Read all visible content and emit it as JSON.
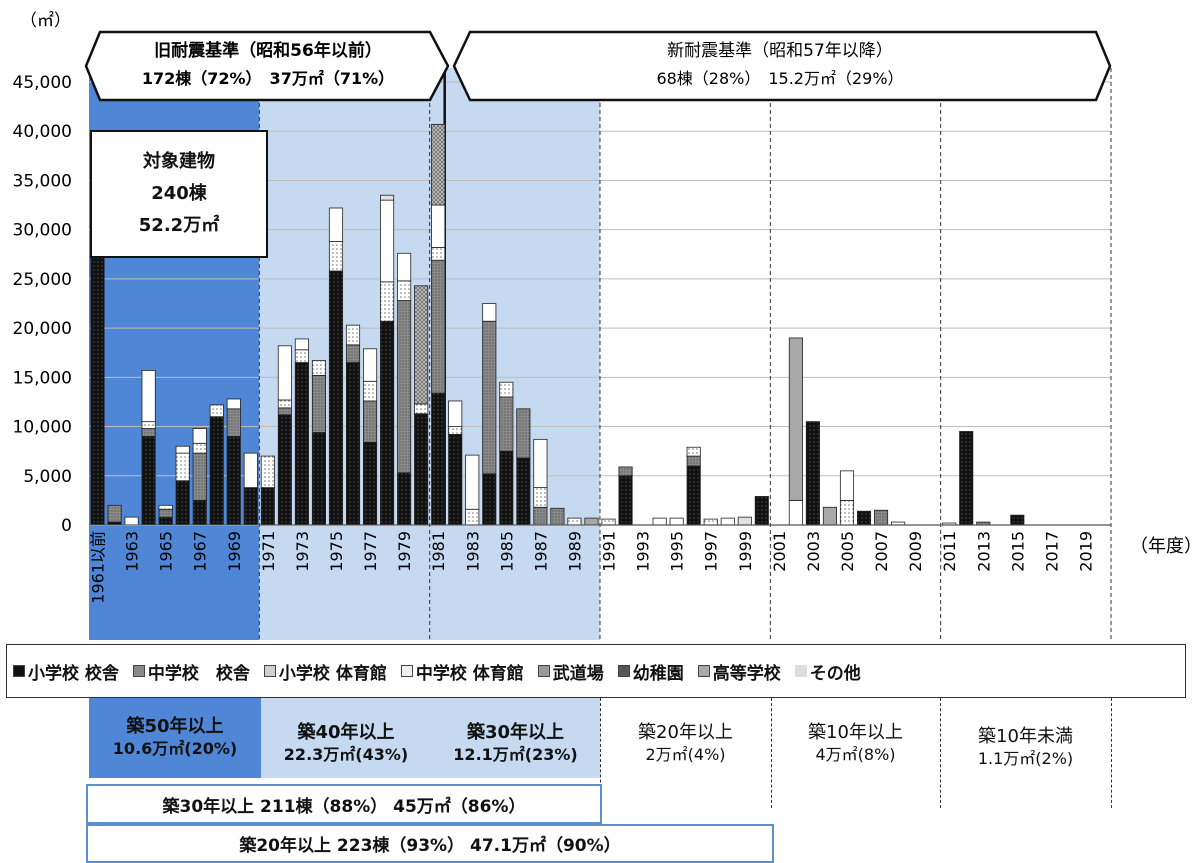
{
  "unit_label": "（㎡）",
  "x_unit_label": "（年度）",
  "banners": {
    "old": {
      "title": "旧耐震基準（昭和56年以前）",
      "sub": "172棟（72%）　37万㎡（71%）"
    },
    "new": {
      "title": "新耐震基準（昭和57年以降）",
      "sub": "68棟（28%）　15.2万㎡（29%）"
    }
  },
  "target_box": {
    "line1": "対象建物",
    "line2": "240棟",
    "line3": "52.2万㎡"
  },
  "legend": [
    {
      "label": "小学校 校舎",
      "color": "#111111"
    },
    {
      "label": "中学校　校舎",
      "color": "#8a8a8a"
    },
    {
      "label": "小学校 体育館",
      "color": "#d0d0d0"
    },
    {
      "label": "中学校 体育館",
      "color": "#efefef"
    },
    {
      "label": "武道場",
      "color": "#9a9a9a"
    },
    {
      "label": "幼稚園",
      "color": "#555555"
    },
    {
      "label": "高等学校",
      "color": "#a8a8a8"
    },
    {
      "label": "その他",
      "color": "#dddddd"
    }
  ],
  "age_groups": [
    {
      "line1": "築50年以上",
      "line2": "10.6万㎡(20%)"
    },
    {
      "line1": "築40年以上",
      "line2": "22.3万㎡(43%)"
    },
    {
      "line1": "築30年以上",
      "line2": "12.1万㎡(23%)"
    },
    {
      "line1": "築20年以上",
      "line2": "2万㎡(4%)"
    },
    {
      "line1": "築10年以上",
      "line2": "4万㎡(8%)"
    },
    {
      "line1": "築10年未満",
      "line2": "1.1万㎡(2%)"
    }
  ],
  "summary_boxes": [
    {
      "text": "築30年以上 211棟（88%） 45万㎡（86%）"
    },
    {
      "text": "築20年以上 223棟（93%） 47.1万㎡（90%）"
    }
  ],
  "colors": {
    "band_50": "#4f86d6",
    "band_30_40": "#c5d9f1",
    "bar_black": "#111111",
    "bar_gray": "#8a8a8a",
    "bar_white": "#ffffff"
  },
  "chart_data": {
    "type": "bar",
    "stacked": true,
    "ylim": [
      0,
      45000
    ],
    "yticks": [
      "0",
      "5,000",
      "10,000",
      "15,000",
      "20,000",
      "25,000",
      "30,000",
      "35,000",
      "40,000",
      "45,000"
    ],
    "categories": [
      "1961以前",
      "1962",
      "1963",
      "1964",
      "1965",
      "1966",
      "1967",
      "1968",
      "1969",
      "1970",
      "1971",
      "1972",
      "1973",
      "1974",
      "1975",
      "1976",
      "1977",
      "1978",
      "1979",
      "1980",
      "1981",
      "1982",
      "1983",
      "1984",
      "1985",
      "1986",
      "1987",
      "1988",
      "1989",
      "1990",
      "1991",
      "1992",
      "1993",
      "1994",
      "1995",
      "1996",
      "1997",
      "1998",
      "1999",
      "2000",
      "2001",
      "2002",
      "2003",
      "2004",
      "2005",
      "2006",
      "2007",
      "2008",
      "2009",
      "2010",
      "2011",
      "2012",
      "2013",
      "2014",
      "2015",
      "2016",
      "2017",
      "2018",
      "2019",
      "2020"
    ],
    "xtick_labels": [
      "1961以前",
      "",
      "1963",
      "",
      "1965",
      "",
      "1967",
      "",
      "1969",
      "",
      "1971",
      "",
      "1973",
      "",
      "1975",
      "",
      "1977",
      "",
      "1979",
      "",
      "1981",
      "",
      "1983",
      "",
      "1985",
      "",
      "1987",
      "",
      "1989",
      "",
      "1991",
      "",
      "1993",
      "",
      "1995",
      "",
      "1997",
      "",
      "1999",
      "",
      "2001",
      "",
      "2003",
      "",
      "2005",
      "",
      "2007",
      "",
      "2009",
      "",
      "2011",
      "",
      "2013",
      "",
      "2015",
      "",
      "2017",
      "",
      "2019",
      ""
    ],
    "series": [
      {
        "name": "小学校 校舎",
        "values": [
          31800,
          300,
          0,
          9000,
          800,
          4500,
          2500,
          11000,
          9000,
          3800,
          3800,
          11200,
          16500,
          9400,
          25800,
          16500,
          8400,
          20700,
          5300,
          11300,
          13400,
          9200,
          0,
          5200,
          7500,
          6800,
          0,
          0,
          0,
          0,
          0,
          5000,
          0,
          0,
          0,
          6000,
          0,
          0,
          0,
          2900,
          0,
          0,
          10500,
          0,
          0,
          1400,
          0,
          0,
          0,
          0,
          0,
          9500,
          0,
          0,
          1000,
          0,
          0,
          0,
          0,
          0
        ]
      },
      {
        "name": "中学校　校舎",
        "values": [
          0,
          1700,
          0,
          800,
          800,
          0,
          4800,
          0,
          2800,
          0,
          0,
          700,
          0,
          5800,
          0,
          1800,
          4200,
          0,
          17500,
          0,
          13500,
          0,
          0,
          15500,
          5500,
          5000,
          1800,
          1700,
          0,
          0,
          0,
          900,
          0,
          0,
          0,
          1000,
          0,
          0,
          0,
          0,
          0,
          0,
          0,
          0,
          0,
          0,
          1500,
          0,
          0,
          0,
          0,
          0,
          300,
          0,
          0,
          0,
          0,
          0,
          0,
          0
        ]
      },
      {
        "name": "小学校 体育館",
        "values": [
          0,
          0,
          0,
          700,
          400,
          2800,
          1000,
          1200,
          0,
          0,
          3200,
          800,
          1300,
          1500,
          3000,
          2000,
          2000,
          4000,
          2000,
          1000,
          1300,
          800,
          1600,
          0,
          1500,
          0,
          2000,
          0,
          700,
          0,
          600,
          0,
          0,
          0,
          0,
          900,
          600,
          0,
          0,
          0,
          0,
          0,
          0,
          0,
          2500,
          0,
          0,
          300,
          0,
          0,
          0,
          0,
          0,
          0,
          0,
          0,
          0,
          0,
          0,
          0
        ]
      },
      {
        "name": "中学校 体育館",
        "values": [
          0,
          0,
          800,
          5200,
          0,
          700,
          1500,
          0,
          1000,
          3500,
          0,
          5500,
          1100,
          0,
          3400,
          0,
          3300,
          8300,
          2800,
          0,
          4300,
          2600,
          5500,
          1800,
          0,
          0,
          4900,
          0,
          0,
          0,
          0,
          0,
          0,
          700,
          700,
          0,
          0,
          700,
          0,
          0,
          0,
          2500,
          0,
          0,
          3000,
          0,
          0,
          0,
          0,
          0,
          200,
          0,
          0,
          0,
          0,
          0,
          0,
          0,
          0,
          0
        ]
      },
      {
        "name": "その他",
        "values": [
          0,
          0,
          0,
          0,
          0,
          0,
          0,
          0,
          0,
          0,
          0,
          0,
          0,
          0,
          0,
          0,
          0,
          500,
          0,
          0,
          0,
          0,
          0,
          0,
          0,
          0,
          0,
          0,
          0,
          0,
          0,
          0,
          0,
          0,
          0,
          0,
          0,
          0,
          800,
          0,
          0,
          0,
          0,
          0,
          0,
          0,
          0,
          0,
          0,
          0,
          0,
          0,
          0,
          0,
          0,
          0,
          0,
          0,
          0,
          0
        ]
      },
      {
        "name": "高等学校",
        "values": [
          0,
          0,
          0,
          0,
          0,
          0,
          0,
          0,
          0,
          0,
          0,
          0,
          0,
          0,
          0,
          0,
          0,
          0,
          0,
          0,
          0,
          0,
          0,
          0,
          0,
          0,
          0,
          0,
          0,
          700,
          0,
          0,
          0,
          0,
          0,
          0,
          0,
          0,
          0,
          0,
          0,
          16500,
          0,
          1800,
          0,
          0,
          0,
          0,
          0,
          0,
          0,
          0,
          0,
          0,
          0,
          0,
          0,
          0,
          0,
          0
        ]
      },
      {
        "name": "武道場",
        "values": [
          0,
          0,
          0,
          0,
          0,
          0,
          0,
          0,
          0,
          0,
          0,
          0,
          0,
          0,
          0,
          0,
          0,
          0,
          0,
          12000,
          8200,
          0,
          0,
          0,
          0,
          0,
          0,
          0,
          0,
          0,
          0,
          0,
          0,
          0,
          0,
          0,
          0,
          0,
          0,
          0,
          0,
          0,
          0,
          0,
          0,
          0,
          0,
          0,
          0,
          0,
          0,
          0,
          0,
          0,
          0,
          0,
          0,
          0,
          0,
          0
        ]
      }
    ],
    "xlabel": "（年度）",
    "ylabel": "（㎡）"
  }
}
